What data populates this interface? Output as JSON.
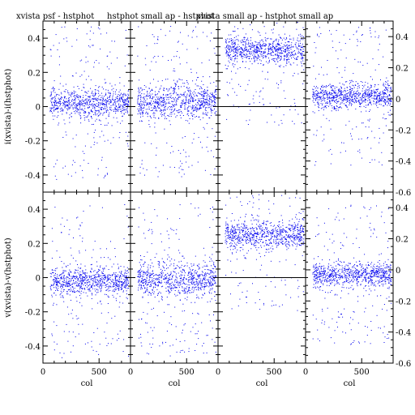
{
  "figure_colors": {
    "points": "#0000ee",
    "axes": "#000000",
    "zero_line": "#000000",
    "background": "#ffffff"
  },
  "chart_data": [
    {
      "type": "scatter",
      "title": "xvista psf - hstphot",
      "ylabel": "i(xvista)-i(hstphot)",
      "xlabel": "",
      "xlim": [
        0,
        780
      ],
      "ylim": [
        -0.5,
        0.5
      ],
      "center": 0.02,
      "spread": 0.04,
      "seed": 11,
      "zero_line": false,
      "yticks_side": "left",
      "ytick_labels": [
        "-0.4",
        "-0.2",
        "0",
        "0.2",
        "0.4"
      ],
      "xtick_labels": []
    },
    {
      "type": "scatter",
      "title": "hstphot small ap - hstphot",
      "ylabel": "",
      "xlabel": "",
      "xlim": [
        0,
        780
      ],
      "ylim": [
        -0.5,
        0.5
      ],
      "center": 0.03,
      "spread": 0.05,
      "seed": 23,
      "zero_line": false,
      "yticks_side": "none",
      "ytick_labels": [],
      "xtick_labels": []
    },
    {
      "type": "scatter",
      "title": "xvista small ap - hstphot small ap",
      "ylabel": "",
      "xlabel": "",
      "xlim": [
        0,
        780
      ],
      "ylim": [
        -0.5,
        0.5
      ],
      "center": 0.33,
      "spread": 0.04,
      "seed": 37,
      "zero_line": true,
      "yticks_side": "none",
      "ytick_labels": [],
      "xtick_labels": []
    },
    {
      "type": "scatter",
      "title": "",
      "ylabel": "",
      "xlabel": "",
      "xlim": [
        0,
        780
      ],
      "ylim": [
        -0.6,
        0.5
      ],
      "center": 0.02,
      "spread": 0.04,
      "seed": 41,
      "zero_line": false,
      "yticks_side": "right",
      "ytick_labels": [
        "-0.6",
        "-0.4",
        "-0.2",
        "0",
        "0.2",
        "0.4"
      ],
      "xtick_labels": []
    },
    {
      "type": "scatter",
      "title": "",
      "ylabel": "v(xvista)-v(hstphot)",
      "xlabel": "col",
      "xlim": [
        0,
        780
      ],
      "ylim": [
        -0.5,
        0.5
      ],
      "center": -0.02,
      "spread": 0.04,
      "seed": 53,
      "zero_line": false,
      "yticks_side": "left",
      "ytick_labels": [
        "-0.4",
        "-0.2",
        "0",
        "0.2",
        "0.4"
      ],
      "xtick_labels": [
        "0",
        "500"
      ]
    },
    {
      "type": "scatter",
      "title": "",
      "ylabel": "",
      "xlabel": "col",
      "xlim": [
        0,
        780
      ],
      "ylim": [
        -0.5,
        0.5
      ],
      "center": -0.01,
      "spread": 0.05,
      "seed": 67,
      "zero_line": false,
      "yticks_side": "none",
      "ytick_labels": [],
      "xtick_labels": [
        "0",
        "500"
      ]
    },
    {
      "type": "scatter",
      "title": "",
      "ylabel": "",
      "xlabel": "col",
      "xlim": [
        0,
        780
      ],
      "ylim": [
        -0.5,
        0.5
      ],
      "center": 0.25,
      "spread": 0.04,
      "seed": 79,
      "zero_line": true,
      "yticks_side": "none",
      "ytick_labels": [],
      "xtick_labels": [
        "0",
        "500"
      ]
    },
    {
      "type": "scatter",
      "title": "",
      "ylabel": "",
      "xlabel": "col",
      "xlim": [
        0,
        780
      ],
      "ylim": [
        -0.6,
        0.5
      ],
      "center": -0.03,
      "spread": 0.04,
      "seed": 97,
      "zero_line": false,
      "yticks_side": "right",
      "ytick_labels": [
        "-0.6",
        "-0.4",
        "-0.2",
        "0",
        "0.2",
        "0.4"
      ],
      "xtick_labels": [
        "0",
        "500"
      ]
    }
  ]
}
